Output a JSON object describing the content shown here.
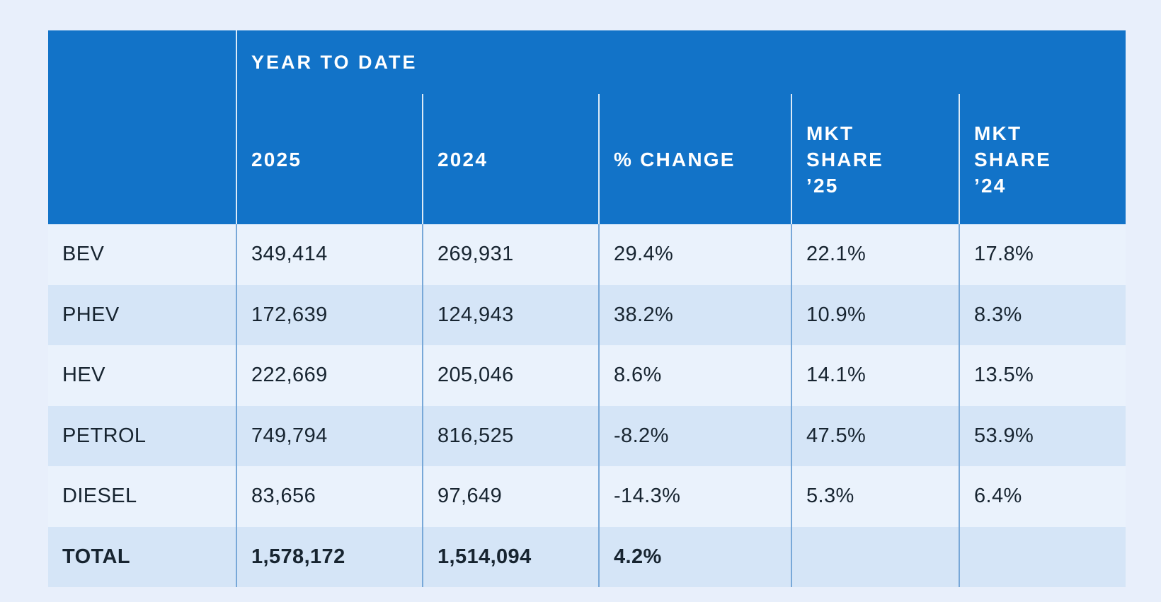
{
  "colors": {
    "page_background": "#e8effb",
    "header_blue": "#1273c8",
    "row_light": "#eaf2fc",
    "row_dark": "#d5e5f7",
    "body_divider": "#78a8d8",
    "header_divider": "#ffffff",
    "text_dark": "#172430",
    "text_header": "#ffffff"
  },
  "table": {
    "group_header": "YEAR TO DATE",
    "columns": [
      {
        "label": ""
      },
      {
        "label": "2025"
      },
      {
        "label": "2024"
      },
      {
        "label": "% CHANGE"
      },
      {
        "label": "MKT\nSHARE\n’25"
      },
      {
        "label": "MKT\nSHARE\n’24"
      }
    ],
    "rows": [
      {
        "label": "BEV",
        "y2025": "349,414",
        "y2024": "269,931",
        "change": "29.4%",
        "share25": "22.1%",
        "share24": "17.8%"
      },
      {
        "label": "PHEV",
        "y2025": "172,639",
        "y2024": "124,943",
        "change": "38.2%",
        "share25": "10.9%",
        "share24": "8.3%"
      },
      {
        "label": "HEV",
        "y2025": "222,669",
        "y2024": "205,046",
        "change": "8.6%",
        "share25": "14.1%",
        "share24": "13.5%"
      },
      {
        "label": "PETROL",
        "y2025": "749,794",
        "y2024": "816,525",
        "change": "-8.2%",
        "share25": "47.5%",
        "share24": "53.9%"
      },
      {
        "label": "DIESEL",
        "y2025": "83,656",
        "y2024": "97,649",
        "change": "-14.3%",
        "share25": "5.3%",
        "share24": "6.4%"
      },
      {
        "label": "TOTAL",
        "y2025": "1,578,172",
        "y2024": "1,514,094",
        "change": "4.2%",
        "share25": "",
        "share24": ""
      }
    ]
  },
  "chart_data": {
    "type": "table",
    "title": "YEAR TO DATE",
    "columns": [
      "",
      "2025",
      "2024",
      "% CHANGE",
      "MKT SHARE ’25",
      "MKT SHARE ’24"
    ],
    "rows": [
      [
        "BEV",
        349414,
        269931,
        "29.4%",
        "22.1%",
        "17.8%"
      ],
      [
        "PHEV",
        172639,
        124943,
        "38.2%",
        "10.9%",
        "8.3%"
      ],
      [
        "HEV",
        222669,
        205046,
        "8.6%",
        "14.1%",
        "13.5%"
      ],
      [
        "PETROL",
        749794,
        816525,
        "-8.2%",
        "47.5%",
        "53.9%"
      ],
      [
        "DIESEL",
        83656,
        97649,
        "-14.3%",
        "5.3%",
        "6.4%"
      ],
      [
        "TOTAL",
        1578172,
        1514094,
        "4.2%",
        "",
        ""
      ]
    ],
    "notes": "Alternating light/dark blue row stripes; blue header band spans data columns; market-share cells empty on TOTAL row"
  }
}
